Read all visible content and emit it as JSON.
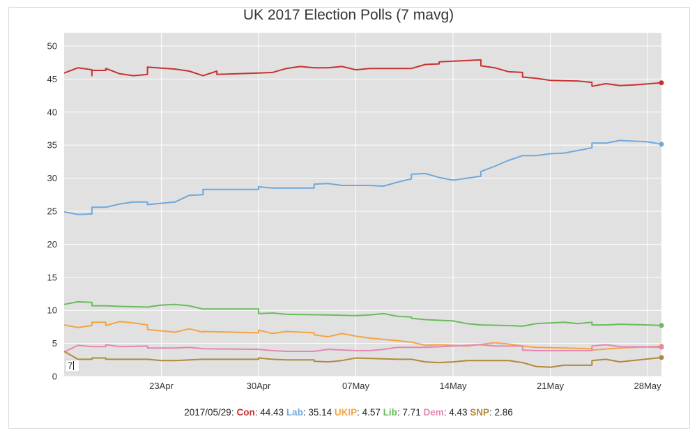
{
  "chart_data": {
    "type": "line",
    "title": "UK 2017 Election Polls (7 mavg)",
    "xlabel": "",
    "ylabel": "",
    "ylim": [
      0,
      52
    ],
    "xlim": [
      "2017-04-16",
      "2017-05-29"
    ],
    "yticks": [
      0,
      5,
      10,
      15,
      20,
      25,
      30,
      35,
      40,
      45,
      50
    ],
    "xticks": [
      {
        "date": "2017-04-23",
        "label": "23Apr"
      },
      {
        "date": "2017-04-30",
        "label": "30Apr"
      },
      {
        "date": "2017-05-07",
        "label": "07May"
      },
      {
        "date": "2017-05-14",
        "label": "14May"
      },
      {
        "date": "2017-05-21",
        "label": "21May"
      },
      {
        "date": "2017-05-28",
        "label": "28May"
      }
    ],
    "grid": true,
    "series": [
      {
        "name": "Con",
        "color": "#c8312f",
        "points": [
          [
            "2017-04-16",
            45.9
          ],
          [
            "2017-04-17",
            46.7
          ],
          [
            "2017-04-18",
            46.4
          ],
          [
            "2017-04-18",
            45.5
          ],
          [
            "2017-04-18",
            46.3
          ],
          [
            "2017-04-19",
            46.3
          ],
          [
            "2017-04-19",
            46.6
          ],
          [
            "2017-04-20",
            45.8
          ],
          [
            "2017-04-21",
            45.5
          ],
          [
            "2017-04-22",
            45.7
          ],
          [
            "2017-04-22",
            46.8
          ],
          [
            "2017-04-24",
            46.5
          ],
          [
            "2017-04-25",
            46.2
          ],
          [
            "2017-04-26",
            45.5
          ],
          [
            "2017-04-27",
            46.2
          ],
          [
            "2017-04-27",
            45.7
          ],
          [
            "2017-04-30",
            45.9
          ],
          [
            "2017-05-01",
            46.0
          ],
          [
            "2017-05-02",
            46.6
          ],
          [
            "2017-05-03",
            46.9
          ],
          [
            "2017-05-04",
            46.7
          ],
          [
            "2017-05-05",
            46.7
          ],
          [
            "2017-05-06",
            46.9
          ],
          [
            "2017-05-07",
            46.4
          ],
          [
            "2017-05-08",
            46.6
          ],
          [
            "2017-05-10",
            46.6
          ],
          [
            "2017-05-11",
            46.6
          ],
          [
            "2017-05-12",
            47.2
          ],
          [
            "2017-05-13",
            47.3
          ],
          [
            "2017-05-13",
            47.6
          ],
          [
            "2017-05-16",
            47.9
          ],
          [
            "2017-05-16",
            47.0
          ],
          [
            "2017-05-17",
            46.7
          ],
          [
            "2017-05-18",
            46.1
          ],
          [
            "2017-05-19",
            46.0
          ],
          [
            "2017-05-19",
            45.3
          ],
          [
            "2017-05-20",
            45.1
          ],
          [
            "2017-05-21",
            44.8
          ],
          [
            "2017-05-23",
            44.7
          ],
          [
            "2017-05-24",
            44.5
          ],
          [
            "2017-05-24",
            43.9
          ],
          [
            "2017-05-25",
            44.3
          ],
          [
            "2017-05-26",
            44.0
          ],
          [
            "2017-05-27",
            44.1
          ],
          [
            "2017-05-29",
            44.43
          ]
        ]
      },
      {
        "name": "Lab",
        "color": "#6fa8dc",
        "points": [
          [
            "2017-04-16",
            24.9
          ],
          [
            "2017-04-17",
            24.5
          ],
          [
            "2017-04-18",
            24.6
          ],
          [
            "2017-04-18",
            25.6
          ],
          [
            "2017-04-19",
            25.6
          ],
          [
            "2017-04-20",
            26.1
          ],
          [
            "2017-04-21",
            26.4
          ],
          [
            "2017-04-22",
            26.4
          ],
          [
            "2017-04-22",
            26.0
          ],
          [
            "2017-04-24",
            26.4
          ],
          [
            "2017-04-25",
            27.4
          ],
          [
            "2017-04-26",
            27.5
          ],
          [
            "2017-04-26",
            28.3
          ],
          [
            "2017-04-30",
            28.3
          ],
          [
            "2017-04-30",
            28.7
          ],
          [
            "2017-05-01",
            28.5
          ],
          [
            "2017-05-04",
            28.5
          ],
          [
            "2017-05-04",
            29.1
          ],
          [
            "2017-05-05",
            29.2
          ],
          [
            "2017-05-06",
            28.9
          ],
          [
            "2017-05-08",
            28.9
          ],
          [
            "2017-05-09",
            28.8
          ],
          [
            "2017-05-10",
            29.4
          ],
          [
            "2017-05-11",
            29.9
          ],
          [
            "2017-05-11",
            30.6
          ],
          [
            "2017-05-12",
            30.7
          ],
          [
            "2017-05-13",
            30.1
          ],
          [
            "2017-05-14",
            29.7
          ],
          [
            "2017-05-15",
            30.0
          ],
          [
            "2017-05-16",
            30.3
          ],
          [
            "2017-05-16",
            31.0
          ],
          [
            "2017-05-17",
            31.8
          ],
          [
            "2017-05-18",
            32.7
          ],
          [
            "2017-05-19",
            33.4
          ],
          [
            "2017-05-20",
            33.4
          ],
          [
            "2017-05-21",
            33.7
          ],
          [
            "2017-05-22",
            33.8
          ],
          [
            "2017-05-23",
            34.2
          ],
          [
            "2017-05-24",
            34.6
          ],
          [
            "2017-05-24",
            35.3
          ],
          [
            "2017-05-25",
            35.3
          ],
          [
            "2017-05-26",
            35.7
          ],
          [
            "2017-05-28",
            35.5
          ],
          [
            "2017-05-29",
            35.14
          ]
        ]
      },
      {
        "name": "UKIP",
        "color": "#f3a443",
        "points": [
          [
            "2017-04-16",
            7.8
          ],
          [
            "2017-04-17",
            7.4
          ],
          [
            "2017-04-18",
            7.7
          ],
          [
            "2017-04-18",
            8.2
          ],
          [
            "2017-04-19",
            8.2
          ],
          [
            "2017-04-19",
            7.7
          ],
          [
            "2017-04-20",
            8.3
          ],
          [
            "2017-04-21",
            8.1
          ],
          [
            "2017-04-22",
            7.8
          ],
          [
            "2017-04-22",
            7.1
          ],
          [
            "2017-04-24",
            6.7
          ],
          [
            "2017-04-25",
            7.2
          ],
          [
            "2017-04-26",
            6.7
          ],
          [
            "2017-04-26",
            6.8
          ],
          [
            "2017-04-30",
            6.6
          ],
          [
            "2017-04-30",
            7.0
          ],
          [
            "2017-05-01",
            6.5
          ],
          [
            "2017-05-02",
            6.8
          ],
          [
            "2017-05-04",
            6.6
          ],
          [
            "2017-05-04",
            6.3
          ],
          [
            "2017-05-05",
            6.0
          ],
          [
            "2017-05-06",
            6.5
          ],
          [
            "2017-05-07",
            6.1
          ],
          [
            "2017-05-08",
            5.8
          ],
          [
            "2017-05-10",
            5.4
          ],
          [
            "2017-05-11",
            5.2
          ],
          [
            "2017-05-12",
            4.7
          ],
          [
            "2017-05-13",
            4.8
          ],
          [
            "2017-05-15",
            4.6
          ],
          [
            "2017-05-17",
            5.1
          ],
          [
            "2017-05-18",
            4.9
          ],
          [
            "2017-05-19",
            4.6
          ],
          [
            "2017-05-20",
            4.4
          ],
          [
            "2017-05-24",
            4.2
          ],
          [
            "2017-05-24",
            4.0
          ],
          [
            "2017-05-26",
            4.3
          ],
          [
            "2017-05-29",
            4.57
          ]
        ]
      },
      {
        "name": "Lib",
        "color": "#6abb5d",
        "points": [
          [
            "2017-04-16",
            10.9
          ],
          [
            "2017-04-17",
            11.3
          ],
          [
            "2017-04-18",
            11.2
          ],
          [
            "2017-04-18",
            10.7
          ],
          [
            "2017-04-19",
            10.7
          ],
          [
            "2017-04-20",
            10.6
          ],
          [
            "2017-04-22",
            10.5
          ],
          [
            "2017-04-23",
            10.8
          ],
          [
            "2017-04-24",
            10.9
          ],
          [
            "2017-04-25",
            10.7
          ],
          [
            "2017-04-26",
            10.2
          ],
          [
            "2017-04-30",
            10.2
          ],
          [
            "2017-04-30",
            9.5
          ],
          [
            "2017-05-01",
            9.6
          ],
          [
            "2017-05-02",
            9.4
          ],
          [
            "2017-05-05",
            9.3
          ],
          [
            "2017-05-07",
            9.2
          ],
          [
            "2017-05-08",
            9.3
          ],
          [
            "2017-05-09",
            9.5
          ],
          [
            "2017-05-10",
            9.1
          ],
          [
            "2017-05-11",
            9.0
          ],
          [
            "2017-05-11",
            8.8
          ],
          [
            "2017-05-12",
            8.6
          ],
          [
            "2017-05-14",
            8.4
          ],
          [
            "2017-05-15",
            8.0
          ],
          [
            "2017-05-16",
            7.8
          ],
          [
            "2017-05-18",
            7.7
          ],
          [
            "2017-05-19",
            7.6
          ],
          [
            "2017-05-20",
            8.0
          ],
          [
            "2017-05-21",
            8.1
          ],
          [
            "2017-05-22",
            8.2
          ],
          [
            "2017-05-23",
            8.0
          ],
          [
            "2017-05-24",
            8.2
          ],
          [
            "2017-05-24",
            7.8
          ],
          [
            "2017-05-25",
            7.8
          ],
          [
            "2017-05-26",
            7.9
          ],
          [
            "2017-05-28",
            7.8
          ],
          [
            "2017-05-29",
            7.71
          ]
        ]
      },
      {
        "name": "Dem",
        "color": "#e586b4",
        "points": [
          [
            "2017-04-16",
            3.7
          ],
          [
            "2017-04-17",
            4.7
          ],
          [
            "2017-04-18",
            4.5
          ],
          [
            "2017-04-19",
            4.5
          ],
          [
            "2017-04-19",
            4.8
          ],
          [
            "2017-04-20",
            4.5
          ],
          [
            "2017-04-22",
            4.6
          ],
          [
            "2017-04-22",
            4.3
          ],
          [
            "2017-04-24",
            4.3
          ],
          [
            "2017-04-25",
            4.4
          ],
          [
            "2017-04-26",
            4.2
          ],
          [
            "2017-04-30",
            4.1
          ],
          [
            "2017-05-01",
            3.9
          ],
          [
            "2017-05-02",
            3.8
          ],
          [
            "2017-05-04",
            3.8
          ],
          [
            "2017-05-05",
            4.1
          ],
          [
            "2017-05-07",
            3.9
          ],
          [
            "2017-05-08",
            3.9
          ],
          [
            "2017-05-09",
            4.1
          ],
          [
            "2017-05-10",
            4.4
          ],
          [
            "2017-05-12",
            4.4
          ],
          [
            "2017-05-14",
            4.6
          ],
          [
            "2017-05-16",
            4.8
          ],
          [
            "2017-05-17",
            4.6
          ],
          [
            "2017-05-18",
            4.6
          ],
          [
            "2017-05-19",
            4.6
          ],
          [
            "2017-05-19",
            4.0
          ],
          [
            "2017-05-20",
            3.9
          ],
          [
            "2017-05-22",
            3.9
          ],
          [
            "2017-05-24",
            3.9
          ],
          [
            "2017-05-24",
            4.6
          ],
          [
            "2017-05-25",
            4.8
          ],
          [
            "2017-05-26",
            4.5
          ],
          [
            "2017-05-29",
            4.43
          ]
        ]
      },
      {
        "name": "SNP",
        "color": "#b0893a",
        "points": [
          [
            "2017-04-16",
            3.8
          ],
          [
            "2017-04-17",
            2.6
          ],
          [
            "2017-04-18",
            2.6
          ],
          [
            "2017-04-18",
            2.8
          ],
          [
            "2017-04-19",
            2.8
          ],
          [
            "2017-04-19",
            2.6
          ],
          [
            "2017-04-22",
            2.6
          ],
          [
            "2017-04-23",
            2.4
          ],
          [
            "2017-04-24",
            2.4
          ],
          [
            "2017-04-26",
            2.6
          ],
          [
            "2017-04-30",
            2.6
          ],
          [
            "2017-04-30",
            2.8
          ],
          [
            "2017-05-01",
            2.6
          ],
          [
            "2017-05-02",
            2.5
          ],
          [
            "2017-05-04",
            2.5
          ],
          [
            "2017-05-04",
            2.3
          ],
          [
            "2017-05-05",
            2.2
          ],
          [
            "2017-05-06",
            2.4
          ],
          [
            "2017-05-07",
            2.8
          ],
          [
            "2017-05-10",
            2.6
          ],
          [
            "2017-05-11",
            2.6
          ],
          [
            "2017-05-12",
            2.2
          ],
          [
            "2017-05-13",
            2.1
          ],
          [
            "2017-05-14",
            2.2
          ],
          [
            "2017-05-15",
            2.4
          ],
          [
            "2017-05-18",
            2.4
          ],
          [
            "2017-05-19",
            2.1
          ],
          [
            "2017-05-20",
            1.5
          ],
          [
            "2017-05-21",
            1.4
          ],
          [
            "2017-05-22",
            1.7
          ],
          [
            "2017-05-24",
            1.7
          ],
          [
            "2017-05-24",
            2.4
          ],
          [
            "2017-05-25",
            2.6
          ],
          [
            "2017-05-26",
            2.2
          ],
          [
            "2017-05-29",
            2.86
          ]
        ]
      }
    ]
  },
  "legend": {
    "date": "2017/05/29:",
    "entries": [
      {
        "name": "Con",
        "value": "44.43",
        "color": "#c8312f"
      },
      {
        "name": "Lab",
        "value": "35.14",
        "color": "#6fa8dc"
      },
      {
        "name": "UKIP",
        "value": "4.57",
        "color": "#f3a443"
      },
      {
        "name": "Lib",
        "value": "7.71",
        "color": "#6abb5d"
      },
      {
        "name": "Dem",
        "value": "4.43",
        "color": "#e586b4"
      },
      {
        "name": "SNP",
        "value": "2.86",
        "color": "#b0893a"
      }
    ]
  },
  "roller": {
    "value": "7"
  }
}
